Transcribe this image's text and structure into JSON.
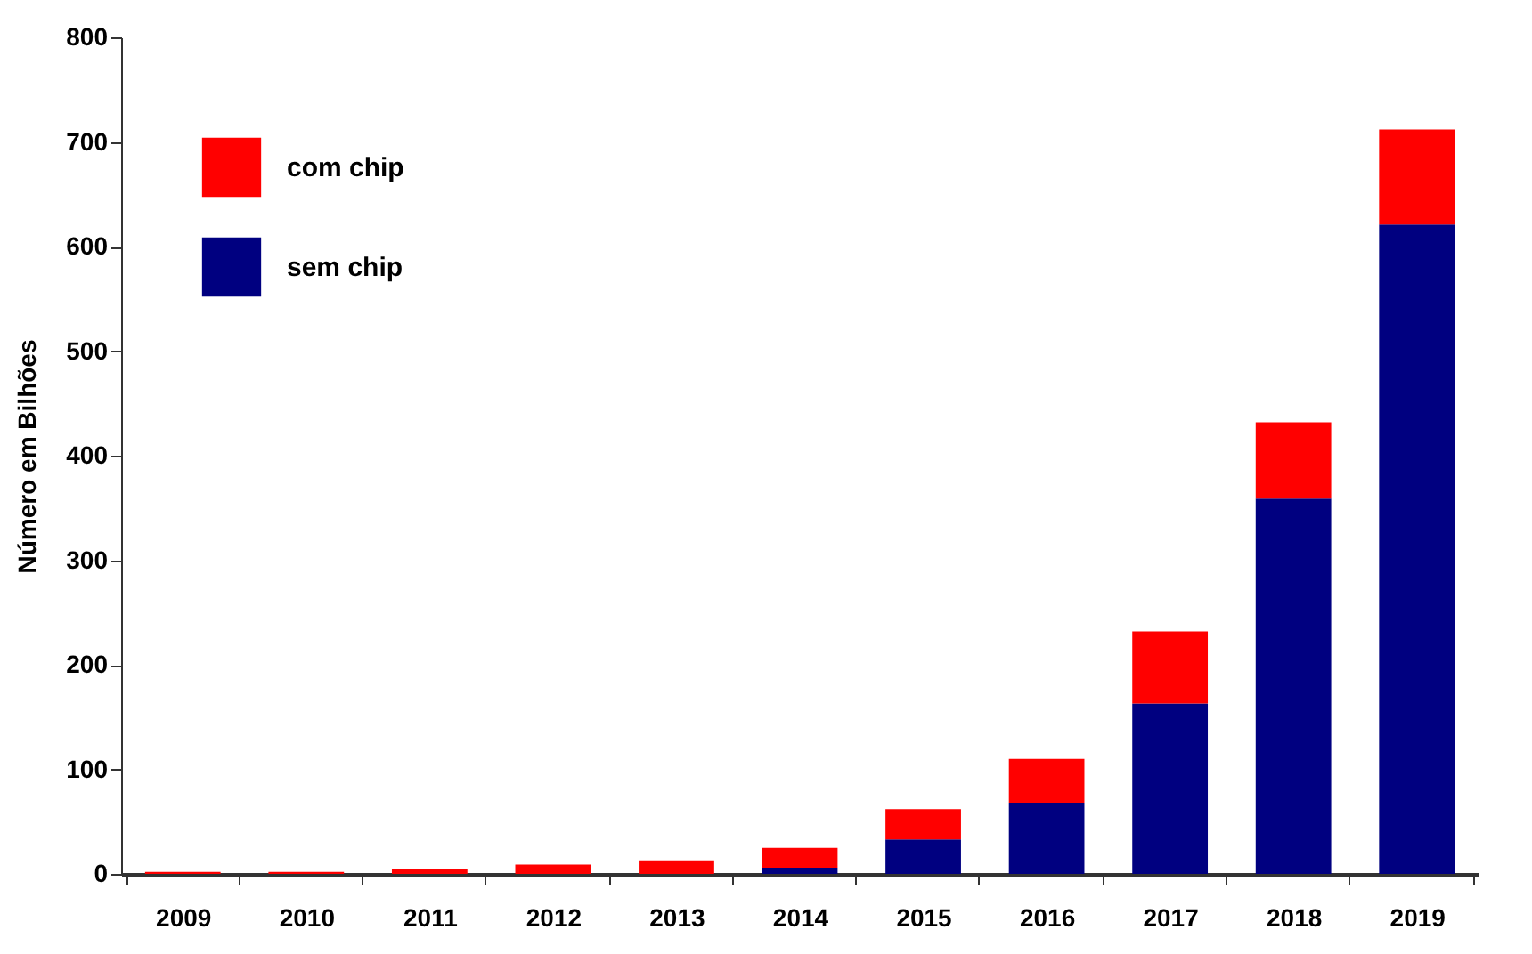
{
  "chart_data": {
    "type": "bar",
    "ylabel": "Número em Bilhões",
    "categories": [
      "2009",
      "2010",
      "2011",
      "2012",
      "2013",
      "2014",
      "2015",
      "2016",
      "2017",
      "2018",
      "2019"
    ],
    "series": [
      {
        "name": "sem chip",
        "color": "#000080",
        "values": [
          0,
          0,
          0,
          0,
          0,
          6,
          33,
          68,
          163,
          359,
          621
        ]
      },
      {
        "name": "com chip",
        "color": "#ff0000",
        "values": [
          2,
          2,
          5,
          9,
          13,
          19,
          29,
          42,
          69,
          73,
          91
        ]
      }
    ],
    "stacked": true,
    "ylim": [
      0,
      800
    ],
    "yticks": [
      0,
      100,
      200,
      300,
      400,
      500,
      600,
      700,
      800
    ],
    "grid": false,
    "legend": "top left"
  }
}
